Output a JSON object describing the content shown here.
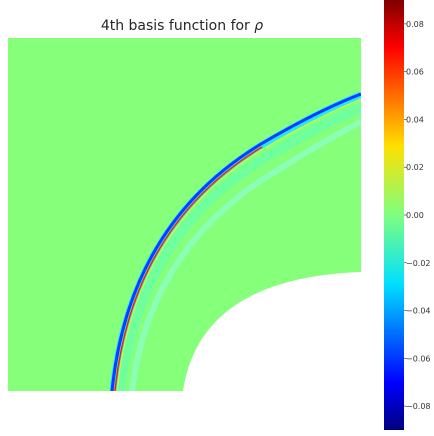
{
  "chart_data": {
    "type": "heatmap",
    "title": "4th basis function for",
    "title_symbol": "ρ",
    "xlabel": "",
    "ylabel": "",
    "colormap": "jet",
    "colorbar": {
      "range": [
        -0.09,
        0.09
      ],
      "ticks": [
        0.08,
        0.06,
        0.04,
        0.02,
        0.0,
        -0.02,
        -0.04,
        -0.06,
        -0.08
      ],
      "tick_labels": [
        "0.08",
        "0.06",
        "0.04",
        "0.02",
        "0.00",
        "−0.02",
        "−0.04",
        "−0.06",
        "−0.08"
      ]
    },
    "background_value": 0.0,
    "masked_region": "white quarter-disk in lower-right corner (no data)",
    "features": [
      {
        "name": "shock-front-band",
        "peak_value": 0.085,
        "trough_value": -0.085
      },
      {
        "name": "secondary-band",
        "value": -0.01
      }
    ],
    "grid": false
  }
}
